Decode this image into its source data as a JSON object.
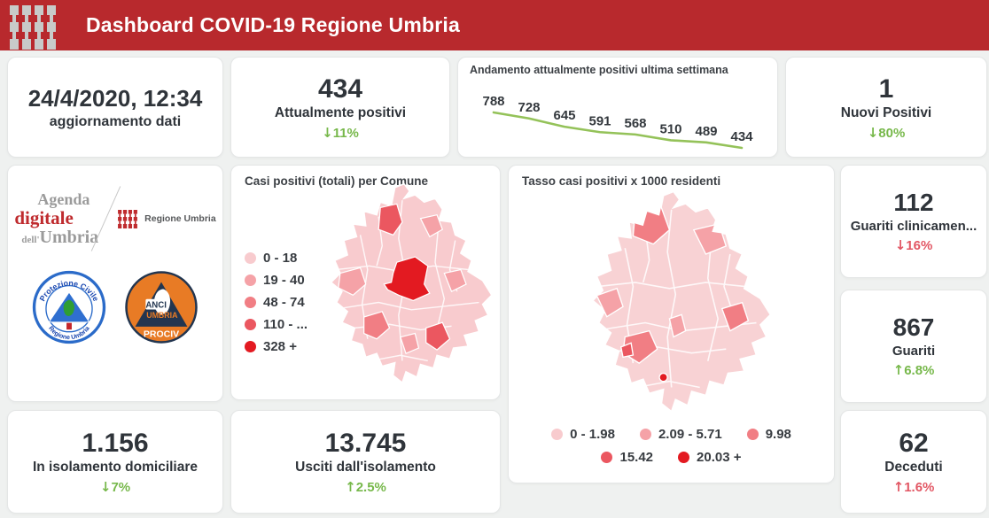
{
  "header": {
    "title": "Dashboard COVID-19 Regione Umbria",
    "bg_color": "#b8292d",
    "logo_icon": "regione-umbria-ceri-icon"
  },
  "cards": {
    "update": {
      "value": "24/4/2020, 12:34",
      "label": "aggiornamento dati"
    },
    "attualmente_positivi": {
      "value": "434",
      "label": "Attualmente positivi",
      "arrow": "↓",
      "trend": "11%",
      "trend_color": "#77b84b"
    },
    "nuovi_positivi": {
      "value": "1",
      "label": "Nuovi Positivi",
      "arrow": "↓",
      "trend": "80%",
      "trend_color": "#77b84b"
    },
    "guariti_clinicamente": {
      "value": "112",
      "label": "Guariti clinicamen...",
      "arrow": "↓",
      "trend": "16%",
      "trend_color": "#e25764"
    },
    "guariti": {
      "value": "867",
      "label": "Guariti",
      "arrow": "↑",
      "trend": "6.8%",
      "trend_color": "#77b84b"
    },
    "in_isolamento": {
      "value": "1.156",
      "label": "In isolamento domiciliare",
      "arrow": "↓",
      "trend": "7%",
      "trend_color": "#77b84b"
    },
    "usciti_isolamento": {
      "value": "13.745",
      "label": "Usciti dall'isolamento",
      "arrow": "↑",
      "trend": "2.5%",
      "trend_color": "#77b84b"
    },
    "deceduti": {
      "value": "62",
      "label": "Deceduti",
      "arrow": "↑",
      "trend": "1.6%",
      "trend_color": "#e25764"
    }
  },
  "chart_data": [
    {
      "type": "line",
      "title": "Andamento attualmente positivi ultima settimana",
      "values": [
        788,
        728,
        645,
        591,
        568,
        510,
        489,
        434
      ],
      "data_labels": true,
      "line_color": "#94c259",
      "label_color": "#33383d",
      "axes": "hidden",
      "legend": "none"
    },
    {
      "type": "choropleth",
      "title": "Casi positivi (totali) per Comune",
      "region": "Umbria (per Comune)",
      "legend_position": "left",
      "classes": [
        {
          "label": "0 - 18",
          "color": "#f8cbce"
        },
        {
          "label": "19 - 40",
          "color": "#f5a2a7"
        },
        {
          "label": "48 - 74",
          "color": "#f17e84"
        },
        {
          "label": "110 - ...",
          "color": "#eb5760"
        },
        {
          "label": "328 +",
          "color": "#e31a21"
        }
      ]
    },
    {
      "type": "choropleth",
      "title": "Tasso casi positivi x 1000 residenti",
      "region": "Umbria (per Comune)",
      "legend_position": "bottom",
      "classes": [
        {
          "label": "0 - 1.98",
          "color": "#f8cbce"
        },
        {
          "label": "2.09 - 5.71",
          "color": "#f5a2a7"
        },
        {
          "label": "9.98",
          "color": "#f17e84"
        },
        {
          "label": "15.42",
          "color": "#eb5760"
        },
        {
          "label": "20.03 +",
          "color": "#e31a21"
        }
      ]
    }
  ],
  "logos": {
    "agenda_digitale": {
      "line1": "Agenda",
      "line2": "digitale",
      "line3_small": "dell'",
      "line3_big": "Umbria"
    },
    "regione_umbria": {
      "label": "Regione Umbria"
    },
    "protezione_civile": {
      "top_text": "Protezione Civile",
      "bottom_text": "Regione Umbria"
    },
    "anci_prociv": {
      "text1": "ANCI",
      "text2": "UMBRIA",
      "text3": "PROCIV"
    }
  }
}
